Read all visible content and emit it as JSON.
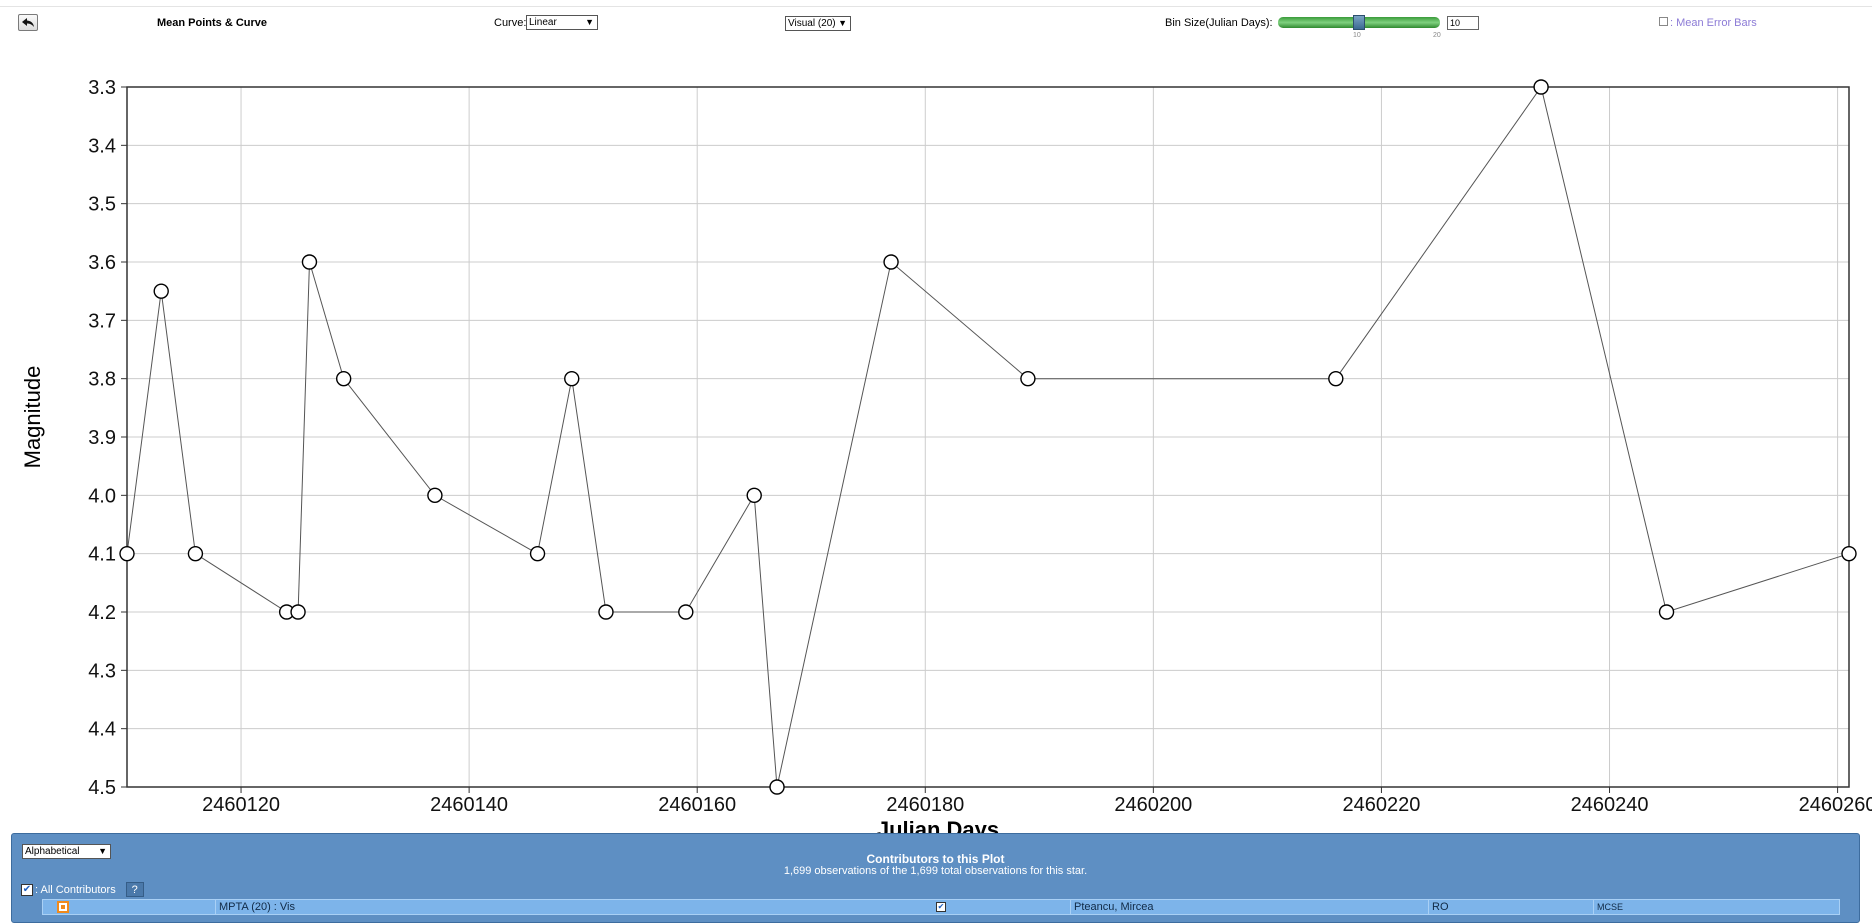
{
  "toolbar": {
    "title": "Mean Points & Curve",
    "curve_label": "Curve:",
    "curve_value": "Linear",
    "band_value": "Visual (20)",
    "bin_label": "Bin Size(Julian Days):",
    "slider_tick_10": "10",
    "slider_tick_20": "20",
    "bin_value": "10",
    "bin_fraction": 0.5,
    "error_bars_label": ": Mean Error Bars"
  },
  "chart_data": {
    "type": "line",
    "xlabel": "Julian Days",
    "ylabel": "Magnitude",
    "xlim": [
      2460110,
      2460261
    ],
    "ylim": [
      3.3,
      4.5
    ],
    "y_inverted": true,
    "grid": true,
    "x_ticks": [
      2460120,
      2460140,
      2460160,
      2460180,
      2460200,
      2460220,
      2460240,
      2460260
    ],
    "x_tick_labels": [
      "2460120",
      "2460140",
      "2460160",
      "2460180",
      "2460200",
      "2460220",
      "2460240",
      "2460260"
    ],
    "y_ticks": [
      3.3,
      3.4,
      3.5,
      3.6,
      3.7,
      3.8,
      3.9,
      4.0,
      4.1,
      4.2,
      4.3,
      4.4,
      4.5
    ],
    "y_tick_labels": [
      "3.3",
      "3.4",
      "3.5",
      "3.6",
      "3.7",
      "3.8",
      "3.9",
      "4.0",
      "4.1",
      "4.2",
      "4.3",
      "4.4",
      "4.5"
    ],
    "series": [
      {
        "x": [
          2460110,
          2460113,
          2460116,
          2460124,
          2460125,
          2460126,
          2460129,
          2460137,
          2460146,
          2460149,
          2460152,
          2460159,
          2460165,
          2460167,
          2460177,
          2460189,
          2460216,
          2460234,
          2460245,
          2460261
        ],
        "y": [
          4.1,
          3.65,
          4.1,
          4.2,
          4.2,
          3.6,
          3.8,
          4.0,
          4.1,
          3.8,
          4.2,
          4.2,
          4.0,
          4.5,
          3.6,
          3.8,
          3.8,
          3.3,
          4.2,
          4.1
        ]
      }
    ],
    "colors": {
      "line": "#555555",
      "marker_fill": "#ffffff",
      "marker_stroke": "#000000",
      "grid": "#cccccc"
    }
  },
  "contributors": {
    "sort_value": "Alphabetical",
    "title": "Contributors to this Plot",
    "subtitle": "1,699 observations of the 1,699 total observations for this star.",
    "all_label": ": All Contributors",
    "help_label": "?",
    "rows": [
      {
        "series": "MPTA (20) : Vis",
        "name": "Pteancu, Mircea",
        "country": "RO",
        "affiliation": "MCSE"
      }
    ]
  }
}
